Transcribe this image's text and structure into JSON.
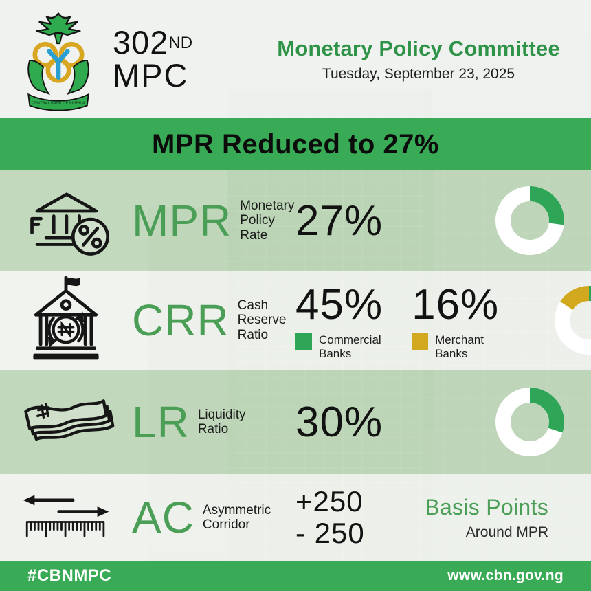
{
  "header": {
    "edition_number": "302",
    "edition_ordinal": "ND",
    "edition_acronym": "MPC",
    "title": "Monetary Policy Committee",
    "date": "Tuesday, September 23, 2025",
    "logo": {
      "name": "cbn-logo",
      "ribbon_text": "CENTRAL BANK OF NIGERIA"
    }
  },
  "banner": {
    "text": "MPR Reduced to 27%"
  },
  "rows": [
    {
      "icon": "bank-percent-icon",
      "abbr": "MPR",
      "label": [
        "Monetary",
        "Policy",
        "Rate"
      ],
      "values": [
        {
          "value": "27%"
        }
      ]
    },
    {
      "icon": "bank-naira-icon",
      "abbr": "CRR",
      "label": [
        "Cash",
        "Reserve",
        "Ratio"
      ],
      "values": [
        {
          "value": "45%",
          "legend": [
            "Commercial",
            "Banks"
          ],
          "swatch": "#2fa557"
        },
        {
          "value": "16%",
          "legend": [
            "Merchant",
            "Banks"
          ],
          "swatch": "#d2a81e"
        }
      ]
    },
    {
      "icon": "banknotes-icon",
      "abbr": "LR",
      "label": [
        "Liquidity",
        "Ratio"
      ],
      "values": [
        {
          "value": "30%"
        }
      ]
    },
    {
      "icon": "corridor-ruler-icon",
      "abbr": "AC",
      "label": [
        "Asymmetric",
        "Corridor"
      ],
      "corridor": {
        "plus": "+250",
        "minus": "- 250",
        "unit": "Basis Points",
        "context": "Around MPR"
      }
    }
  ],
  "footer": {
    "hashtag": "#CBNMPC",
    "website": "www.cbn.gov.ng"
  },
  "colors": {
    "brand_green": "#39ab56",
    "title_green": "#2e9247",
    "abbr_green": "#4a9e56",
    "gold": "#d2a81e",
    "text_dark": "#161616"
  },
  "chart_data": [
    {
      "type": "pie",
      "subtype": "donut",
      "title": "MPR Monetary Policy Rate",
      "track_color": "#ffffff",
      "total": 100,
      "segments": [
        {
          "label": "MPR",
          "value": 27,
          "start": 0,
          "color": "#2fa557"
        }
      ]
    },
    {
      "type": "pie",
      "subtype": "donut",
      "title": "CRR Cash Reserve Ratio",
      "track_color": "#ffffff",
      "total": 100,
      "segments": [
        {
          "label": "Commercial Banks",
          "value": 45,
          "start": 0,
          "color": "#2fa557"
        },
        {
          "label": "Merchant Banks",
          "value": 16,
          "start": 84,
          "color": "#d2a81e"
        }
      ]
    },
    {
      "type": "pie",
      "subtype": "donut",
      "title": "LR Liquidity Ratio",
      "track_color": "#ffffff",
      "total": 100,
      "segments": [
        {
          "label": "LR",
          "value": 30,
          "start": 0,
          "color": "#2fa557"
        }
      ]
    }
  ]
}
